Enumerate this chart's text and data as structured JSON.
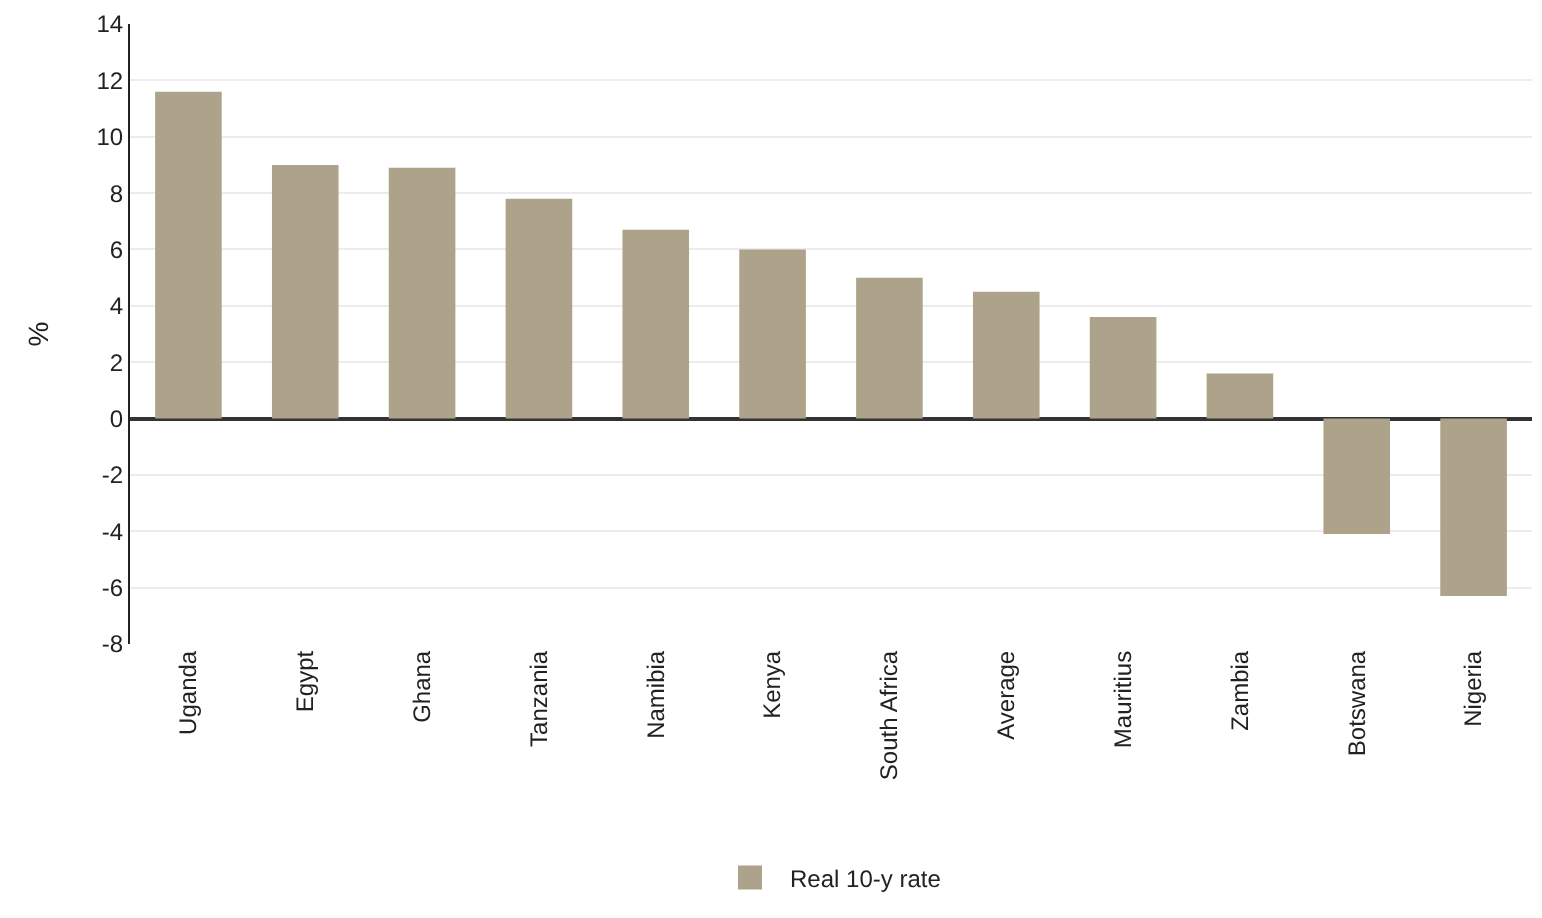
{
  "chart_data": {
    "type": "bar",
    "ylabel": "%",
    "categories": [
      "Uganda",
      "Egypt",
      "Ghana",
      "Tanzania",
      "Namibia",
      "Kenya",
      "South Africa",
      "Average",
      "Mauritius",
      "Zambia",
      "Botswana",
      "Nigeria"
    ],
    "series": [
      {
        "name": "Real 10-y rate",
        "color": "#ada38a",
        "values": [
          11.6,
          9.0,
          8.9,
          7.8,
          6.7,
          6.0,
          5.0,
          4.5,
          3.6,
          1.6,
          -4.1,
          -6.3
        ]
      }
    ],
    "ylim": [
      -8,
      14
    ],
    "yticks": [
      -8,
      -6,
      -4,
      -2,
      0,
      2,
      4,
      6,
      8,
      10,
      12,
      14
    ],
    "grid": "y",
    "legend": "bottom"
  }
}
